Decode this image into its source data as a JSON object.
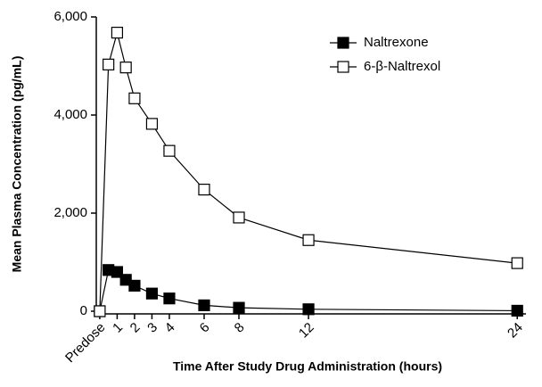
{
  "chart_data": {
    "type": "line",
    "xlabel": "Time After Study Drug Administration (hours)",
    "ylabel": "Mean Plasma Concentration (pg/mL)",
    "x": [
      0,
      0.5,
      1,
      1.5,
      2,
      3,
      4,
      6,
      8,
      12,
      24
    ],
    "series": [
      {
        "name": "Naltrexone",
        "color": "#000000",
        "fill": "#000000",
        "values": [
          0,
          840,
          800,
          640,
          520,
          360,
          260,
          120,
          70,
          40,
          10
        ]
      },
      {
        "name": "6-β-Naltrexol",
        "color": "#000000",
        "fill": "#ffffff",
        "values": [
          0,
          5030,
          5680,
          4970,
          4340,
          3820,
          3270,
          2480,
          1910,
          1450,
          980
        ]
      }
    ],
    "xlim": [
      -0.2,
      24.5
    ],
    "ylim": [
      0,
      6000
    ],
    "xticks": [
      {
        "value": 0,
        "label": "Predose"
      },
      1,
      2,
      3,
      4,
      6,
      8,
      12,
      24
    ],
    "yticks": [
      0,
      {
        "value": 2000,
        "label": "2,000"
      },
      {
        "value": 4000,
        "label": "4,000"
      },
      {
        "value": 6000,
        "label": "6,000"
      }
    ],
    "legend": "upper right"
  }
}
